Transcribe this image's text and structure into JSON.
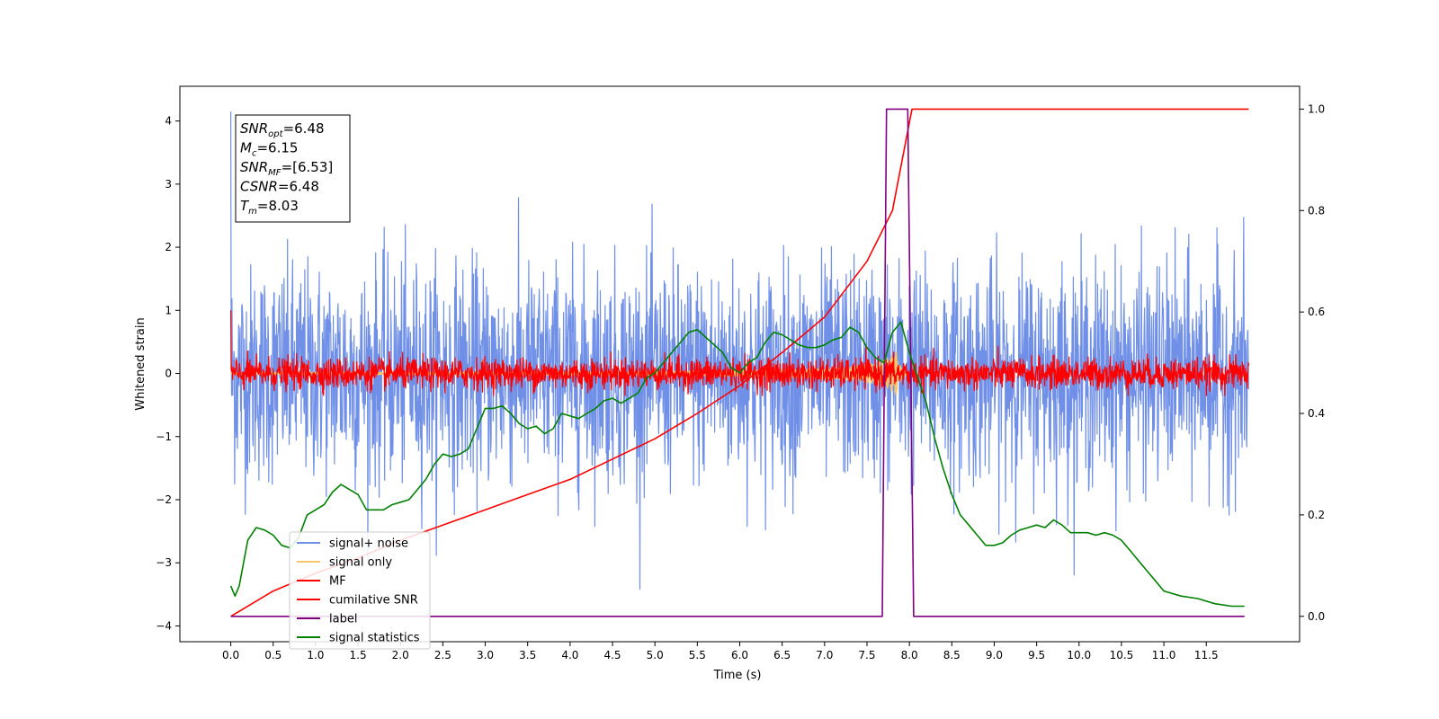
{
  "chart_data": {
    "type": "line",
    "title": "",
    "xlabel": "Time (s)",
    "ylabel": "Whitened strain",
    "ylabel_right": "",
    "xlim": [
      -0.6,
      12.6
    ],
    "ylim": [
      -4.25,
      4.55
    ],
    "ylim_right": [
      -0.05,
      1.045
    ],
    "x_ticks": [
      0.0,
      0.5,
      1.0,
      1.5,
      2.0,
      2.5,
      3.0,
      3.5,
      4.0,
      4.5,
      5.0,
      5.5,
      6.0,
      6.5,
      7.0,
      7.5,
      8.0,
      8.5,
      9.0,
      9.5,
      10.0,
      10.5,
      11.0,
      11.5
    ],
    "x_tick_labels": [
      "0.0",
      "0.5",
      "1.0",
      "1.5",
      "2.0",
      "2.5",
      "3.0",
      "3.5",
      "4.0",
      "4.5",
      "5.0",
      "5.5",
      "6.0",
      "6.5",
      "7.0",
      "7.5",
      "8.0",
      "8.5",
      "9.0",
      "9.5",
      "10.0",
      "10.5",
      "11.0",
      "11.5"
    ],
    "y_ticks": [
      -4,
      -3,
      -2,
      -1,
      0,
      1,
      2,
      3,
      4
    ],
    "y_tick_labels": [
      "−4",
      "−3",
      "−2",
      "−1",
      "0",
      "1",
      "2",
      "3",
      "4"
    ],
    "y_ticks_right": [
      0.0,
      0.2,
      0.4,
      0.6,
      0.8,
      1.0
    ],
    "y_tick_labels_right": [
      "0.0",
      "0.2",
      "0.4",
      "0.6",
      "0.8",
      "1.0"
    ],
    "grid": false,
    "legend_position": "lower-left",
    "annotation_box": {
      "lines": [
        {
          "base": "SNR",
          "sub": "opt",
          "text": "=6.48"
        },
        {
          "base": "M",
          "sub": "c",
          "text": "=6.15"
        },
        {
          "base": "SNR",
          "sub": "MF",
          "text": "=[6.53]"
        },
        {
          "base": "CSNR",
          "sub": "",
          "text": "=6.48"
        },
        {
          "base": "T",
          "sub": "m",
          "text": "=8.03"
        }
      ]
    },
    "series": [
      {
        "name": "signal+ noise",
        "color": "#7090e8",
        "axis": "left",
        "style": "noise",
        "x_range": [
          0.0,
          12.0
        ],
        "amplitude_std": 0.85,
        "y_range": [
          -3.85,
          4.15
        ]
      },
      {
        "name": "signal only",
        "color": "#f7c66e",
        "axis": "left",
        "style": "chirp",
        "x_range": [
          0.0,
          8.03
        ],
        "peak_amplitude": 0.35,
        "peak_time": 7.85
      },
      {
        "name": "MF",
        "color": "#ff0000",
        "axis": "left",
        "style": "noise",
        "x_range": [
          0.0,
          12.0
        ],
        "amplitude_std": 0.12,
        "y_range": [
          -0.35,
          1.0
        ]
      },
      {
        "name": "cumilative SNR",
        "color": "#ff0000",
        "axis": "right",
        "x": [
          0.0,
          0.5,
          1.0,
          1.5,
          2.0,
          2.5,
          3.0,
          3.5,
          4.0,
          4.5,
          5.0,
          5.5,
          6.0,
          6.5,
          7.0,
          7.5,
          7.8,
          8.03,
          8.1,
          12.0
        ],
        "y": [
          0.0,
          0.05,
          0.085,
          0.115,
          0.15,
          0.18,
          0.21,
          0.24,
          0.27,
          0.31,
          0.35,
          0.4,
          0.455,
          0.52,
          0.59,
          0.7,
          0.8,
          1.0,
          1.0,
          1.0
        ]
      },
      {
        "name": "label",
        "color": "#800080",
        "axis": "right",
        "x": [
          0.0,
          7.68,
          7.73,
          7.98,
          8.05,
          11.95
        ],
        "y": [
          0.0,
          0.0,
          1.0,
          1.0,
          0.0,
          0.0
        ]
      },
      {
        "name": "signal statistics",
        "color": "#008000",
        "axis": "right",
        "x": [
          0.0,
          0.05,
          0.1,
          0.2,
          0.3,
          0.4,
          0.5,
          0.6,
          0.7,
          0.8,
          0.9,
          1.0,
          1.1,
          1.2,
          1.3,
          1.4,
          1.5,
          1.6,
          1.7,
          1.8,
          1.9,
          2.0,
          2.1,
          2.2,
          2.3,
          2.4,
          2.5,
          2.6,
          2.7,
          2.8,
          2.9,
          3.0,
          3.1,
          3.2,
          3.3,
          3.4,
          3.5,
          3.6,
          3.7,
          3.8,
          3.9,
          4.0,
          4.1,
          4.2,
          4.3,
          4.4,
          4.5,
          4.6,
          4.7,
          4.8,
          4.9,
          5.0,
          5.1,
          5.2,
          5.3,
          5.4,
          5.5,
          5.6,
          5.7,
          5.8,
          5.9,
          6.0,
          6.1,
          6.2,
          6.3,
          6.4,
          6.5,
          6.6,
          6.7,
          6.8,
          6.9,
          7.0,
          7.1,
          7.2,
          7.3,
          7.4,
          7.5,
          7.6,
          7.7,
          7.8,
          7.9,
          8.0,
          8.1,
          8.2,
          8.3,
          8.4,
          8.5,
          8.6,
          8.7,
          8.8,
          8.9,
          9.0,
          9.1,
          9.2,
          9.3,
          9.4,
          9.5,
          9.6,
          9.7,
          9.8,
          9.9,
          10.0,
          10.1,
          10.2,
          10.3,
          10.4,
          10.5,
          10.6,
          10.7,
          10.8,
          10.9,
          11.0,
          11.2,
          11.4,
          11.6,
          11.8,
          11.95
        ],
        "y": [
          0.06,
          0.04,
          0.06,
          0.15,
          0.175,
          0.17,
          0.16,
          0.14,
          0.135,
          0.155,
          0.2,
          0.21,
          0.22,
          0.245,
          0.26,
          0.25,
          0.24,
          0.21,
          0.21,
          0.21,
          0.22,
          0.225,
          0.23,
          0.25,
          0.27,
          0.3,
          0.32,
          0.315,
          0.32,
          0.33,
          0.37,
          0.41,
          0.41,
          0.415,
          0.4,
          0.38,
          0.37,
          0.375,
          0.36,
          0.37,
          0.4,
          0.395,
          0.39,
          0.4,
          0.41,
          0.425,
          0.43,
          0.42,
          0.43,
          0.44,
          0.47,
          0.48,
          0.5,
          0.52,
          0.54,
          0.56,
          0.565,
          0.55,
          0.535,
          0.52,
          0.49,
          0.48,
          0.5,
          0.51,
          0.54,
          0.56,
          0.555,
          0.545,
          0.535,
          0.53,
          0.53,
          0.535,
          0.545,
          0.55,
          0.57,
          0.56,
          0.53,
          0.51,
          0.5,
          0.56,
          0.58,
          0.52,
          0.47,
          0.42,
          0.35,
          0.29,
          0.24,
          0.2,
          0.18,
          0.16,
          0.14,
          0.14,
          0.145,
          0.16,
          0.17,
          0.175,
          0.18,
          0.175,
          0.19,
          0.18,
          0.165,
          0.165,
          0.165,
          0.16,
          0.165,
          0.16,
          0.15,
          0.13,
          0.11,
          0.09,
          0.07,
          0.05,
          0.04,
          0.035,
          0.025,
          0.02,
          0.02
        ]
      }
    ]
  }
}
